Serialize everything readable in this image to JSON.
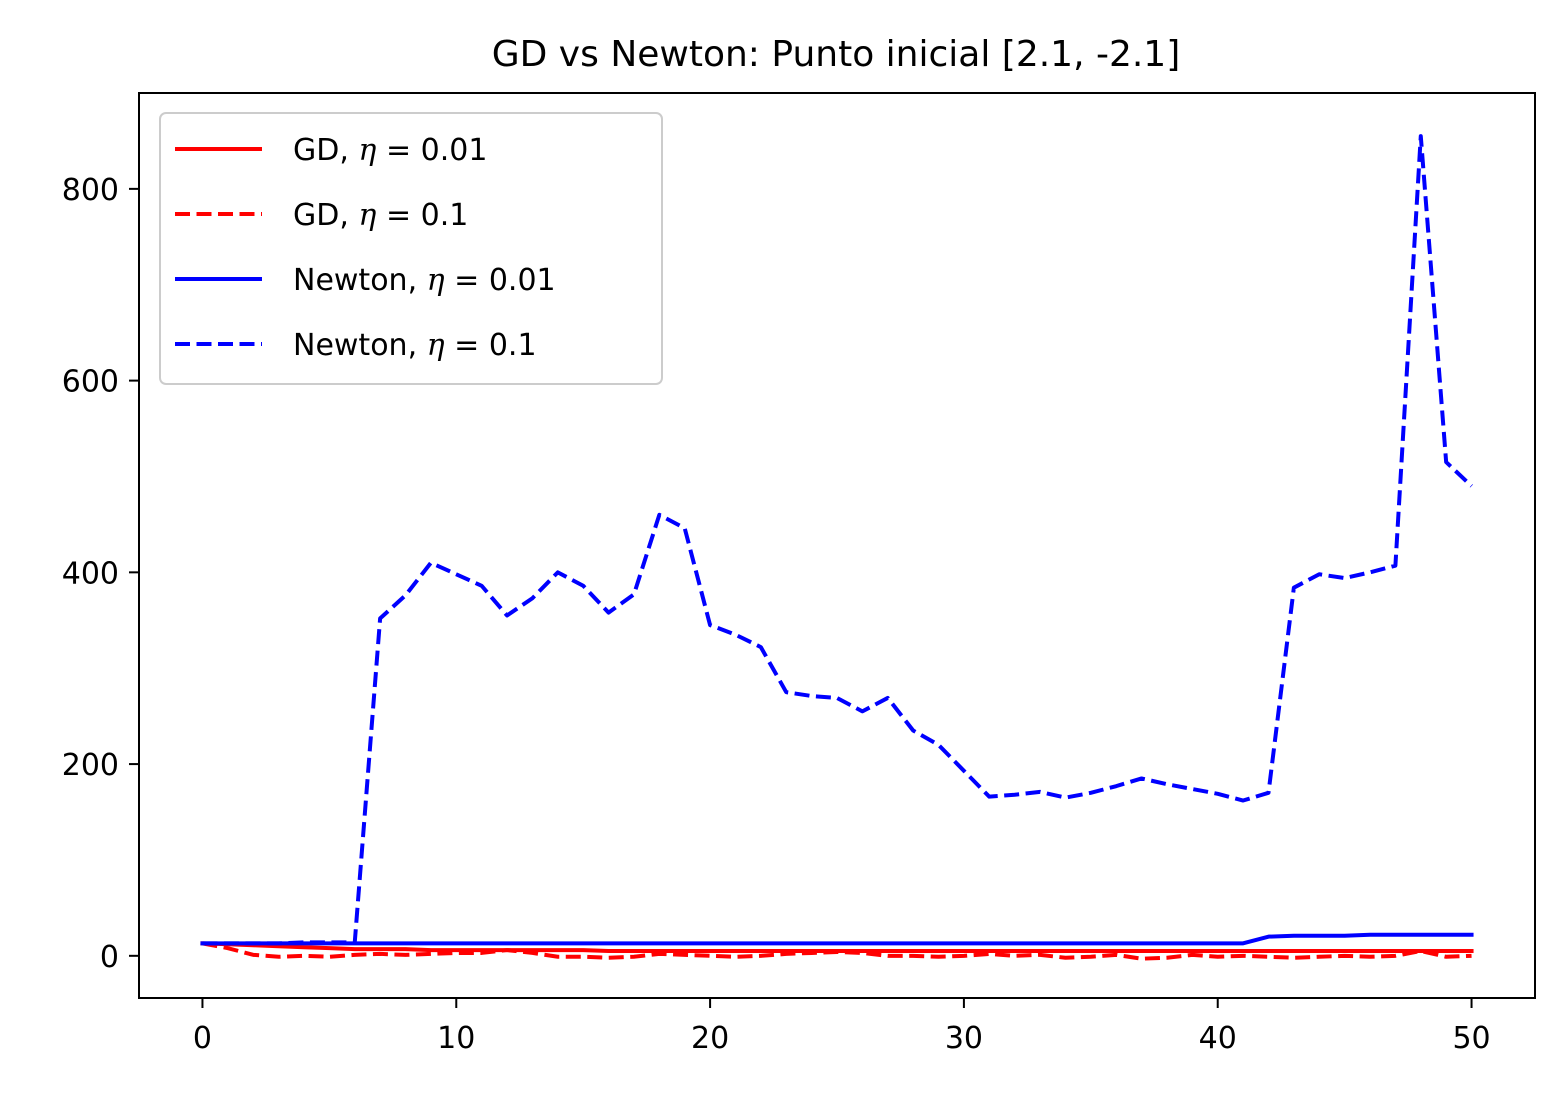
{
  "chart_data": {
    "type": "line",
    "title": "GD vs Newton: Punto inicial [2.1, -2.1]",
    "xlabel": "",
    "ylabel": "",
    "xlim": [
      -2.5,
      52.5
    ],
    "ylim": [
      -44,
      900
    ],
    "xticks": [
      0,
      10,
      20,
      30,
      40,
      50
    ],
    "yticks": [
      0,
      200,
      400,
      600,
      800
    ],
    "grid": false,
    "legend_position": "top-left",
    "x": [
      0,
      1,
      2,
      3,
      4,
      5,
      6,
      7,
      8,
      9,
      10,
      11,
      12,
      13,
      14,
      15,
      16,
      17,
      18,
      19,
      20,
      21,
      22,
      23,
      24,
      25,
      26,
      27,
      28,
      29,
      30,
      31,
      32,
      33,
      34,
      35,
      36,
      37,
      38,
      39,
      40,
      41,
      42,
      43,
      44,
      45,
      46,
      47,
      48,
      49,
      50
    ],
    "series": [
      {
        "name": "GD, η = 0.01",
        "name_parts": {
          "prefix": "GD, ",
          "eta": "η",
          "value": " = 0.01"
        },
        "color": "#ff0000",
        "linestyle": "solid",
        "values": [
          13,
          12,
          11,
          10,
          9,
          8,
          7,
          7,
          7,
          6,
          6,
          6,
          6,
          6,
          6,
          6,
          5,
          5,
          5,
          5,
          5,
          5,
          5,
          5,
          5,
          5,
          5,
          5,
          5,
          5,
          5,
          5,
          5,
          5,
          5,
          5,
          5,
          5,
          5,
          5,
          5,
          5,
          5,
          5,
          5,
          5,
          5,
          5,
          5,
          5,
          5
        ]
      },
      {
        "name": "GD, η = 0.1",
        "name_parts": {
          "prefix": "GD, ",
          "eta": "η",
          "value": " = 0.1"
        },
        "color": "#ff0000",
        "linestyle": "dashed",
        "values": [
          13,
          8,
          1,
          -1,
          0,
          -1,
          1,
          2,
          1,
          2,
          3,
          3,
          6,
          3,
          -1,
          -1,
          -2,
          -1,
          2,
          1,
          0,
          -1,
          0,
          2,
          3,
          4,
          3,
          0,
          0,
          -1,
          0,
          2,
          0,
          1,
          -2,
          -1,
          1,
          -3,
          -2,
          1,
          -1,
          0,
          -1,
          -2,
          -1,
          0,
          -1,
          0,
          5,
          -1,
          0
        ]
      },
      {
        "name": "Newton, η = 0.01",
        "name_parts": {
          "prefix": "Newton, ",
          "eta": "η",
          "value": " = 0.01"
        },
        "color": "#0000ff",
        "linestyle": "solid",
        "values": [
          13,
          13,
          13,
          13,
          13,
          13,
          13,
          13,
          13,
          13,
          13,
          13,
          13,
          13,
          13,
          13,
          13,
          13,
          13,
          13,
          13,
          13,
          13,
          13,
          13,
          13,
          13,
          13,
          13,
          13,
          13,
          13,
          13,
          13,
          13,
          13,
          13,
          13,
          13,
          13,
          13,
          13,
          20,
          21,
          21,
          21,
          22,
          22,
          22,
          22,
          22
        ]
      },
      {
        "name": "Newton, η = 0.1",
        "name_parts": {
          "prefix": "Newton, ",
          "eta": "η",
          "value": " = 0.1"
        },
        "color": "#0000ff",
        "linestyle": "dashed",
        "values": [
          13,
          13,
          13,
          13,
          14,
          14,
          14,
          352,
          376,
          410,
          398,
          386,
          355,
          373,
          400,
          386,
          358,
          377,
          460,
          446,
          345,
          335,
          322,
          275,
          271,
          269,
          255,
          269,
          235,
          220,
          193,
          166,
          168,
          171,
          165,
          170,
          177,
          185,
          179,
          174,
          169,
          162,
          170,
          384,
          398,
          394,
          400,
          407,
          855,
          515,
          490
        ]
      }
    ]
  }
}
